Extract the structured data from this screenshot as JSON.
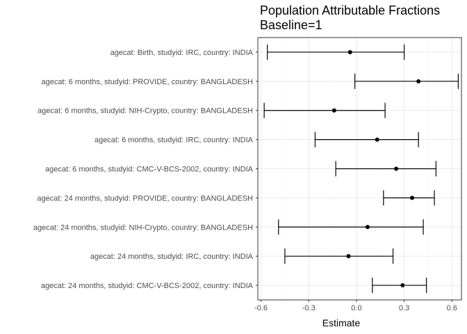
{
  "chart_data": {
    "type": "scatter",
    "subtype": "forest-plot",
    "title": "Population Attributable Fractions",
    "subtitle": "Baseline=1",
    "xlabel": "Estimate",
    "ylabel": "",
    "xlim": [
      -0.62,
      0.66
    ],
    "xticks": [
      -0.6,
      -0.3,
      0.0,
      0.3,
      0.6
    ],
    "xtick_labels": [
      "-0.6",
      "-0.3",
      "0.0",
      "0.3",
      "0.6"
    ],
    "grid": true,
    "theme": "bw",
    "colors": {
      "panel_border": "#333333",
      "grid_major": "#ebebeb",
      "grid_minor": "#f5f5f5",
      "errorbar": "#000000",
      "point": "#000000"
    },
    "rows": [
      {
        "label": "agecat: Birth, studyid: IRC, country: INDIA",
        "estimate": -0.04,
        "lower": -0.56,
        "upper": 0.3
      },
      {
        "label": "agecat: 6 months, studyid: PROVIDE, country: BANGLADESH",
        "estimate": 0.39,
        "lower": -0.01,
        "upper": 0.64
      },
      {
        "label": "agecat: 6 months, studyid: NIH-Crypto, country: BANGLADESH",
        "estimate": -0.14,
        "lower": -0.58,
        "upper": 0.18
      },
      {
        "label": "agecat: 6 months, studyid: IRC, country: INDIA",
        "estimate": 0.13,
        "lower": -0.26,
        "upper": 0.39
      },
      {
        "label": "agecat: 6 months, studyid: CMC-V-BCS-2002, country: INDIA",
        "estimate": 0.25,
        "lower": -0.13,
        "upper": 0.5
      },
      {
        "label": "agecat: 24 months, studyid: PROVIDE, country: BANGLADESH",
        "estimate": 0.35,
        "lower": 0.17,
        "upper": 0.49
      },
      {
        "label": "agecat: 24 months, studyid: NIH-Crypto, country: BANGLADESH",
        "estimate": 0.07,
        "lower": -0.49,
        "upper": 0.42
      },
      {
        "label": "agecat: 24 months, studyid: IRC, country: INDIA",
        "estimate": -0.05,
        "lower": -0.45,
        "upper": 0.23
      },
      {
        "label": "agecat: 24 months, studyid: CMC-V-BCS-2002, country: INDIA",
        "estimate": 0.29,
        "lower": 0.1,
        "upper": 0.44
      }
    ]
  }
}
